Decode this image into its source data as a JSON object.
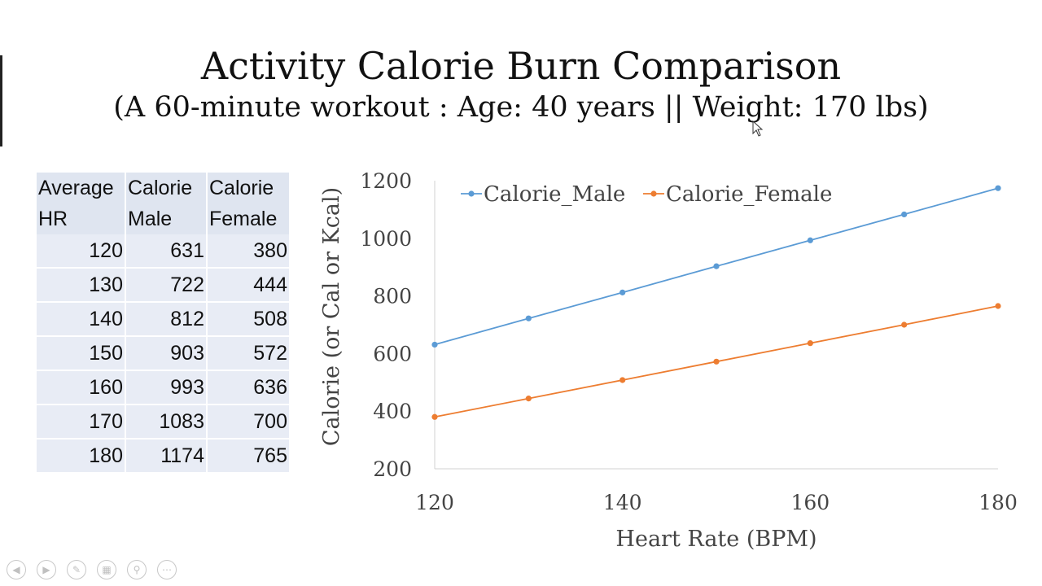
{
  "slide": {
    "title": "Activity Calorie Burn Comparison",
    "subtitle": "(A 60-minute workout : Age: 40 years || Weight: 170 lbs)"
  },
  "table": {
    "headers": [
      [
        "Average",
        "HR"
      ],
      [
        "Calorie",
        "Male"
      ],
      [
        "Calorie",
        "Female"
      ]
    ],
    "rows": [
      [
        "120",
        "631",
        "380"
      ],
      [
        "130",
        "722",
        "444"
      ],
      [
        "140",
        "812",
        "508"
      ],
      [
        "150",
        "903",
        "572"
      ],
      [
        "160",
        "993",
        "636"
      ],
      [
        "170",
        "1083",
        "700"
      ],
      [
        "180",
        "1174",
        "765"
      ]
    ]
  },
  "chart_data": {
    "type": "line",
    "x": [
      120,
      130,
      140,
      150,
      160,
      170,
      180
    ],
    "series": [
      {
        "name": "Calorie_Male",
        "color": "#5b9bd5",
        "values": [
          631,
          722,
          812,
          903,
          993,
          1083,
          1174
        ]
      },
      {
        "name": "Calorie_Female",
        "color": "#ed7d31",
        "values": [
          380,
          444,
          508,
          572,
          636,
          700,
          765
        ]
      }
    ],
    "xlabel": "Heart Rate (BPM)",
    "ylabel": "Calorie (or Cal or Kcal)",
    "xlim": [
      120,
      180
    ],
    "ylim": [
      200,
      1200
    ],
    "xticks": [
      120,
      140,
      160,
      180
    ],
    "yticks": [
      200,
      400,
      600,
      800,
      1000,
      1200
    ],
    "legend": "top",
    "grid": false
  },
  "nav_icons": [
    "back-arrow-icon",
    "forward-arrow-icon",
    "pen-icon",
    "slides-icon",
    "zoom-icon",
    "more-icon"
  ]
}
